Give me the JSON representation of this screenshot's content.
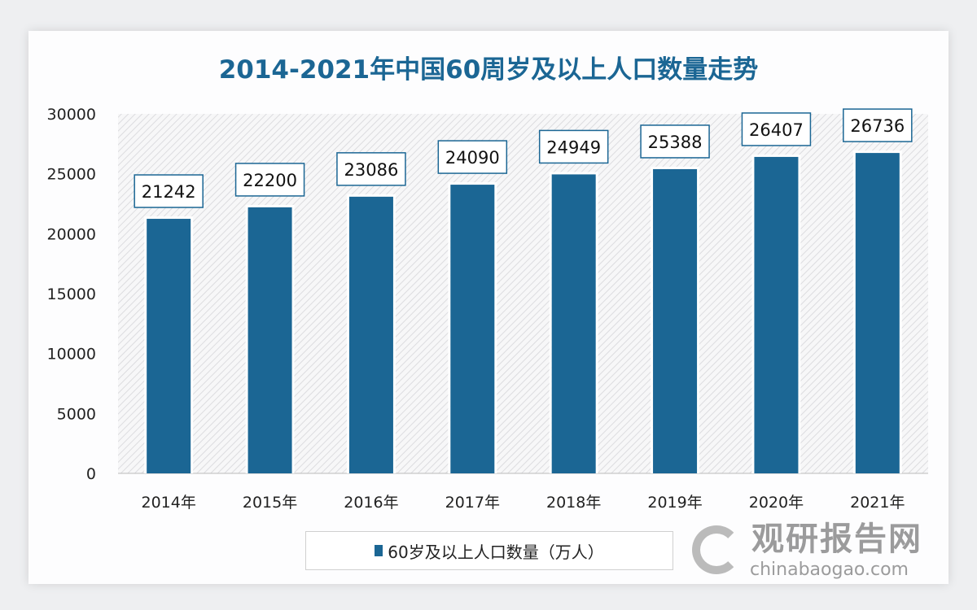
{
  "chart_data": {
    "type": "bar",
    "title": "2014-2021年中国60周岁及以上人口数量走势",
    "categories": [
      "2014年",
      "2015年",
      "2016年",
      "2017年",
      "2018年",
      "2019年",
      "2020年",
      "2021年"
    ],
    "series": [
      {
        "name": "60岁及以上人口数量（万人）",
        "values": [
          21242,
          22200,
          23086,
          24090,
          24949,
          25388,
          26407,
          26736
        ],
        "color": "#1b6694"
      }
    ],
    "ylim": [
      0,
      30000
    ],
    "yticks": [
      0,
      5000,
      10000,
      15000,
      20000,
      25000,
      30000
    ],
    "legend": "bottom",
    "grid": false
  },
  "watermark": {
    "cn": "观研报告网",
    "en": "chinabaogao.com"
  }
}
